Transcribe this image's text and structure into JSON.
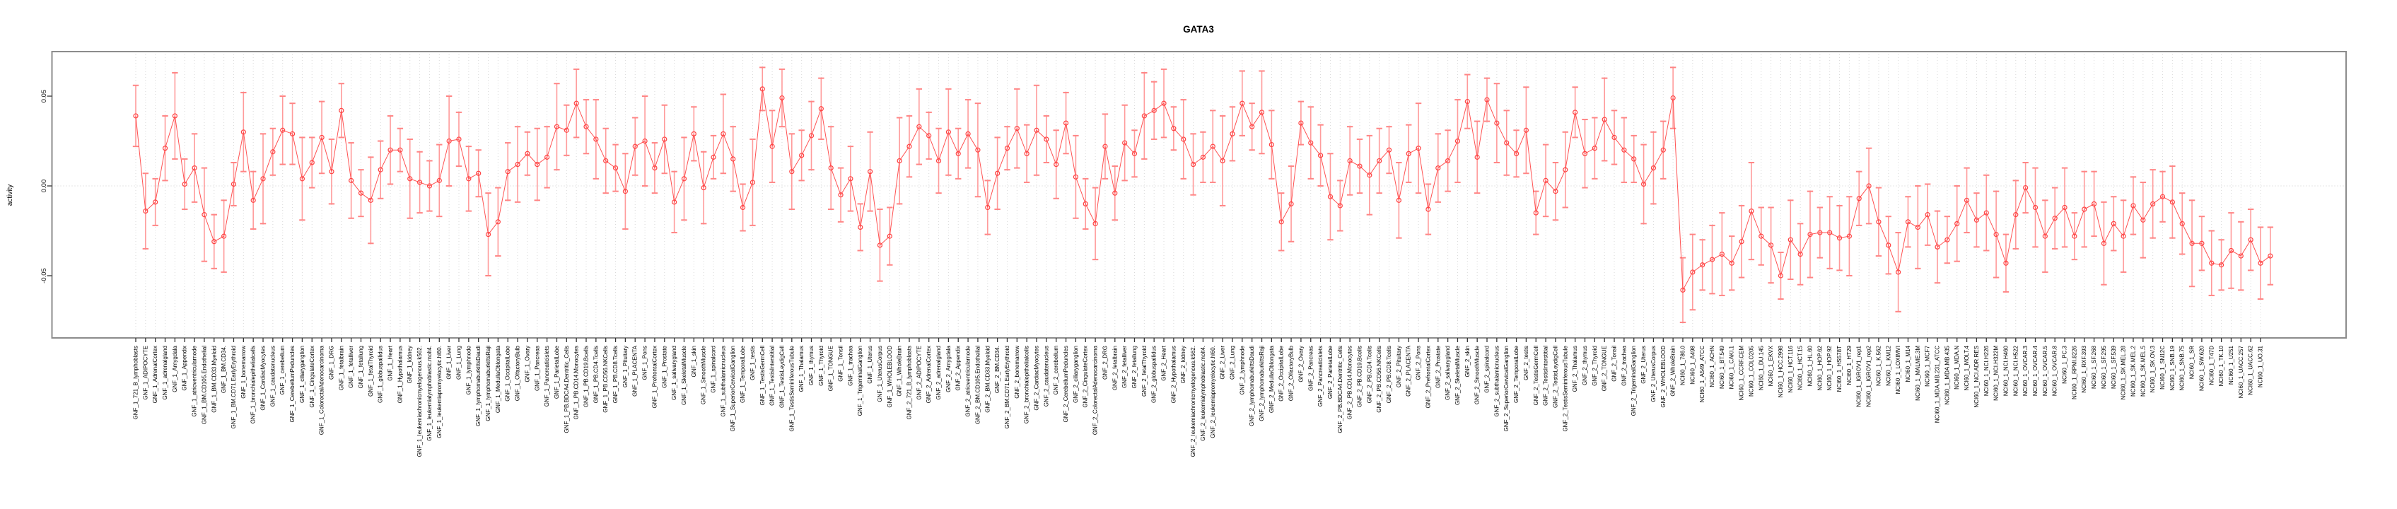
{
  "title": "GATA3",
  "colors": {
    "series_line": "#ff5252",
    "point_stroke": "#ff4242",
    "errorbar": "#ff9b9b",
    "errorbar_cap": "#ff8585",
    "grid": "#d9d9d9",
    "zero_line": "#cccccc",
    "plot_border": "#8c8c8c",
    "tick": "#333333",
    "text": "#000000"
  },
  "chart_data": {
    "type": "line",
    "title": "GATA3",
    "xlabel": "",
    "ylabel": "activity",
    "ylim": [
      -0.085,
      0.075
    ],
    "yticks": [
      0.05,
      0.0,
      -0.05
    ],
    "ytick_labels": [
      "0.05",
      "0.00",
      "-0.05"
    ],
    "legend": "none",
    "grid": "dotted vertical gridline at every category; dotted horizontal line at y=0",
    "marker": "open-circle with symmetric error bars (caps), points connected by line",
    "groups": [
      "GNF_1",
      "GNF_2",
      "NCI60_1"
    ],
    "categories": [
      "GNF_1_721_B_lymphoblasts",
      "GNF_1_ADIPOCYTE",
      "GNF_1_AdrenalCortex",
      "GNF_1_adrenalgland",
      "GNF_1_Amygdala",
      "GNF_1_Appendix",
      "GNF_1_atrioventricularnode",
      "GNF_1_BM.CD105.Endothelial",
      "GNF_1_BM.CD33.Myeloid",
      "GNF_1_BM.CD34.",
      "GNF_1_BM.CD71.EarlyErythroid",
      "GNF_1_bonemarrow",
      "GNF_1_bronchialepithelialcells",
      "GNF_1_CardiacMyocytes",
      "GNF_1_caudatenucleus",
      "GNF_1_cerebellum",
      "GNF_1_CerebellumPeduncles",
      "GNF_1_ciliaryganglion",
      "GNF_1_CingulateCortex",
      "GNF_1_ColorectalAdenocarcinoma",
      "GNF_1_DRG",
      "GNF_1_fetalbrain",
      "GNF_1_fetalliver",
      "GNF_1_fetallung",
      "GNF_1_fetalThyroid",
      "GNF_1_globuspallidus",
      "GNF_1_Heart",
      "GNF_1_Hypothalamus",
      "GNF_1_kidney",
      "GNF_1_leukemiachronicmyelogenous.k562.",
      "GNF_1_leukemialymphoblastic.molt4.",
      "GNF_1_leukemiapromyelocytic.hl60.",
      "GNF_1_Liver",
      "GNF_1_Lung",
      "GNF_1_lymphnode",
      "GNF_1_lymphomaburkittsDaudi",
      "GNF_1_lymphomaburkittsRaji",
      "GNF_1_MedullaOblongata",
      "GNF_1_OccipitalLobe",
      "GNF_1_OlfactoryBulb",
      "GNF_1_Ovary",
      "GNF_1_Pancreas",
      "GNF_1_Pancreaticislets",
      "GNF_1_ParietalLobe",
      "GNF_1_PB.BDCA4.Dentritic_Cells",
      "GNF_1_PB.CD14.Monocytes",
      "GNF_1_PB.CD19.Bcells",
      "GNF_1_PB.CD4.Tcells",
      "GNF_1_PB.CD56.NKCells",
      "GNF_1_PB.CD8.Tcells",
      "GNF_1_Pituitary",
      "GNF_1_PLACENTA",
      "GNF_1_Pons",
      "GNF_1_PrefrontalCortex",
      "GNF_1_Prostate",
      "GNF_1_salivarygland",
      "GNF_1_SkeletalMuscle",
      "GNF_1_skin",
      "GNF_1_SmoothMuscle",
      "GNF_1_spinalcord",
      "GNF_1_subthalamicnucleus",
      "GNF_1_SuperiorCervicalGanglion",
      "GNF_1_TemporalLobe",
      "GNF_1_testis",
      "GNF_1_TestisGermCell",
      "GNF_1_TestisInterstitial",
      "GNF_1_TestisLeydigCell",
      "GNF_1_TestisSeminiferousTubule",
      "GNF_1_Thalamus",
      "GNF_1_thymus",
      "GNF_1_Thyroid",
      "GNF_1_TONGUE",
      "GNF_1_Tonsil",
      "GNF_1_trachea",
      "GNF_1_TrigeminalGanglion",
      "GNF_1_Uterus",
      "GNF_1_UterusCorpus",
      "GNF_1_WHOLEBLOOD",
      "GNF_1_WholeBrain",
      "GNF_2_721_B_lymphoblasts",
      "GNF_2_ADIPOCYTE",
      "GNF_2_AdrenalCortex",
      "GNF_2_adrenalgland",
      "GNF_2_Amygdala",
      "GNF_2_Appendix",
      "GNF_2_atrioventricularnode",
      "GNF_2_BM.CD105.Endothelial",
      "GNF_2_BM.CD33.Myeloid",
      "GNF_2_BM.CD34.",
      "GNF_2_BM.CD71.EarlyErythroid",
      "GNF_2_bonemarrow",
      "GNF_2_bronchialepithelialcells",
      "GNF_2_CardiacMyocytes",
      "GNF_2_caudatenucleus",
      "GNF_2_cerebellum",
      "GNF_2_CerebellumPeduncles",
      "GNF_2_ciliaryganglion",
      "GNF_2_CingulateCortex",
      "GNF_2_ColorectalAdenocarcinoma",
      "GNF_2_DRG",
      "GNF_2_fetalbrain",
      "GNF_2_fetalliver",
      "GNF_2_fetallung",
      "GNF_2_fetalThyroid",
      "GNF_2_globuspallidus",
      "GNF_2_Heart",
      "GNF_2_Hypothalamus",
      "GNF_2_kidney",
      "GNF_2_leukemiachronicmyelogenous.k562.",
      "GNF_2_leukemialymphoblastic.molt4.",
      "GNF_2_leukemiapromyelocytic.hl60.",
      "GNF_2_Liver",
      "GNF_2_Lung",
      "GNF_2_lymphnode",
      "GNF_2_lymphomaburkittsDaudi",
      "GNF_2_lymphomaburkittsRaji",
      "GNF_2_MedullaOblongata",
      "GNF_2_OccipitalLobe",
      "GNF_2_OlfactoryBulb",
      "GNF_2_Ovary",
      "GNF_2_Pancreas",
      "GNF_2_Pancreaticislets",
      "GNF_2_ParietalLobe",
      "GNF_2_PB.BDCA4.Dentritic_Cells",
      "GNF_2_PB.CD14.Monocytes",
      "GNF_2_PB.CD19.Bcells",
      "GNF_2_PB.CD4.Tcells",
      "GNF_2_PB.CD56.NKCells",
      "GNF_2_PB.CD8.Tcells",
      "GNF_2_Pituitary",
      "GNF_2_PLACENTA",
      "GNF_2_Pons",
      "GNF_2_PrefrontalCortex",
      "GNF_2_Prostate",
      "GNF_2_salivarygland",
      "GNF_2_SkeletalMuscle",
      "GNF_2_skin",
      "GNF_2_SmoothMuscle",
      "GNF_2_spinalcord",
      "GNF_2_subthalamicnucleus",
      "GNF_2_SuperiorCervicalGanglion",
      "GNF_2_TemporalLobe",
      "GNF_2_testis",
      "GNF_2_TestisGermCell",
      "GNF_2_TestisInterstitial",
      "GNF_2_TestisLeydigCell",
      "GNF_2_TestisSeminiferousTubule",
      "GNF_2_Thalamus",
      "GNF_2_thymus",
      "GNF_2_Thyroid",
      "GNF_2_TONGUE",
      "GNF_2_Tonsil",
      "GNF_2_trachea",
      "GNF_2_TrigeminalGanglion",
      "GNF_2_Uterus",
      "GNF_2_UterusCorpus",
      "GNF_2_WHOLEBLOOD",
      "GNF_2_WholeBrain",
      "NCI60_1_786.0",
      "NCI60_1_A498",
      "NCI60_1_A549_ATCC",
      "NCI60_1_ACHN",
      "NCI60_1_BT.549",
      "NCI60_1_CAKI.1",
      "NCI60_1_CCRF.CEM",
      "NCI60_1_COLO205",
      "NCI60_1_DU.145",
      "NCI60_1_EKVX",
      "NCI60_1_HCC.2998",
      "NCI60_1_HCT.116",
      "NCI60_1_HCT.15",
      "NCI60_1_HL.60",
      "NCI60_1_HOP.62",
      "NCI60_1_HOP.92",
      "NCI60_1_HS578T",
      "NCI60_1_HT29",
      "NCI60_1_IGROV1_rep1",
      "NCI60_1_IGROV1_rep2",
      "NCI60_1_K.562",
      "NCI60_1_KM12",
      "NCI60_1_LOXIMVI",
      "NCI60_1_M14",
      "NCI60_1_MALME.3M",
      "NCI60_1_MCF7",
      "NCI60_1_MDA.MB.231_ATCC",
      "NCI60_1_MDA.MB.435",
      "NCI60_1_MDA.N",
      "NCI60_1_MOLT.4",
      "NCI60_1_NCI.ADR.RES",
      "NCI60_1_NCI.H226",
      "NCI60_1_NCI.H322M",
      "NCI60_1_NCI.H460",
      "NCI60_1_NCI.H522",
      "NCI60_1_OVCAR.3",
      "NCI60_1_OVCAR.4",
      "NCI60_1_OVCAR.5",
      "NCI60_1_OVCAR.8",
      "NCI60_1_PC.3",
      "NCI60_1_RPMI.8226",
      "NCI60_1_RXF.393",
      "NCI60_1_SF.268",
      "NCI60_1_SF.295",
      "NCI60_1_SF.539",
      "NCI60_1_SK.MEL.28",
      "NCI60_1_SK.MEL.2",
      "NCI60_1_SK.MEL.5",
      "NCI60_1_SK.OV.3",
      "NCI60_1_SN12C",
      "NCI60_1_SNB.19",
      "NCI60_1_SNB.75",
      "NCI60_1_SR",
      "NCI60_1_SW.620",
      "NCI60_1_T47D",
      "NCI60_1_TK.10",
      "NCI60_1_U251",
      "NCI60_1_UACC.257",
      "NCI60_1_UACC.62",
      "NCI60_1_UO.31"
    ],
    "values": [
      0.039,
      -0.014,
      -0.009,
      0.021,
      0.039,
      0.001,
      0.01,
      -0.016,
      -0.031,
      -0.028,
      0.001,
      0.03,
      -0.008,
      0.004,
      0.019,
      0.031,
      0.029,
      0.004,
      0.013,
      0.027,
      0.008,
      0.042,
      0.003,
      -0.004,
      -0.008,
      0.009,
      0.02,
      0.02,
      0.004,
      0.002,
      0.0,
      0.003,
      0.025,
      0.026,
      0.004,
      0.007,
      -0.027,
      -0.02,
      0.008,
      0.012,
      0.018,
      0.012,
      0.016,
      0.033,
      0.031,
      0.046,
      0.033,
      0.026,
      0.014,
      0.01,
      -0.003,
      0.022,
      0.025,
      0.01,
      0.026,
      -0.009,
      0.004,
      0.029,
      -0.001,
      0.016,
      0.029,
      0.015,
      -0.012,
      0.002,
      0.054,
      0.022,
      0.049,
      0.008,
      0.017,
      0.028,
      0.043,
      0.01,
      -0.005,
      0.004,
      -0.023,
      0.008,
      -0.033,
      -0.028,
      0.014,
      0.022,
      0.033,
      0.028,
      0.014,
      0.03,
      0.018,
      0.029,
      0.02,
      -0.012,
      0.007,
      0.021,
      0.032,
      0.018,
      0.031,
      0.026,
      0.012,
      0.035,
      0.005,
      -0.01,
      -0.021,
      0.022,
      -0.004,
      0.024,
      0.018,
      0.039,
      0.042,
      0.046,
      0.032,
      0.026,
      0.012,
      0.016,
      0.022,
      0.014,
      0.029,
      0.046,
      0.033,
      0.041,
      0.023,
      -0.02,
      -0.01,
      0.035,
      0.024,
      0.017,
      -0.006,
      -0.011,
      0.014,
      0.011,
      0.006,
      0.014,
      0.02,
      -0.008,
      0.018,
      0.021,
      -0.013,
      0.01,
      0.014,
      0.025,
      0.047,
      0.016,
      0.048,
      0.035,
      0.024,
      0.018,
      0.031,
      -0.015,
      0.003,
      -0.003,
      0.009,
      0.041,
      0.018,
      0.021,
      0.037,
      0.027,
      0.02,
      0.015,
      0.001,
      0.01,
      0.02,
      0.049,
      -0.058,
      -0.048,
      -0.044,
      -0.041,
      -0.038,
      -0.043,
      -0.031,
      -0.014,
      -0.028,
      -0.033,
      -0.05,
      -0.03,
      -0.038,
      -0.027,
      -0.026,
      -0.026,
      -0.029,
      -0.028,
      -0.007,
      0.0,
      -0.02,
      -0.033,
      -0.048,
      -0.02,
      -0.023,
      -0.016,
      -0.034,
      -0.03,
      -0.021,
      -0.008,
      -0.019,
      -0.015,
      -0.027,
      -0.043,
      -0.016,
      -0.001,
      -0.012,
      -0.028,
      -0.018,
      -0.012,
      -0.028,
      -0.013,
      -0.01,
      -0.032,
      -0.021,
      -0.028,
      -0.011,
      -0.019,
      -0.01,
      -0.006,
      -0.009,
      -0.021,
      -0.032,
      -0.032,
      -0.043,
      -0.044,
      -0.036,
      -0.039,
      -0.03,
      -0.043,
      -0.039
    ],
    "errors": [
      0.017,
      0.021,
      0.013,
      0.018,
      0.024,
      0.014,
      0.019,
      0.026,
      0.015,
      0.02,
      0.012,
      0.022,
      0.016,
      0.025,
      0.013,
      0.019,
      0.017,
      0.023,
      0.014,
      0.02,
      0.018,
      0.015,
      0.021,
      0.013,
      0.024,
      0.016,
      0.019,
      0.012,
      0.022,
      0.017,
      0.014,
      0.02,
      0.025,
      0.015,
      0.018,
      0.013,
      0.023,
      0.019,
      0.016,
      0.021,
      0.012,
      0.02,
      0.017,
      0.024,
      0.014,
      0.019,
      0.015,
      0.022,
      0.018,
      0.013,
      0.021,
      0.016,
      0.025,
      0.014,
      0.019,
      0.017,
      0.023,
      0.015,
      0.02,
      0.012,
      0.022,
      0.018,
      0.013,
      0.024,
      0.012,
      0.02,
      0.016,
      0.021,
      0.014,
      0.019,
      0.017,
      0.023,
      0.015,
      0.018,
      0.013,
      0.022,
      0.02,
      0.016,
      0.024,
      0.017,
      0.021,
      0.013,
      0.018,
      0.024,
      0.014,
      0.019,
      0.026,
      0.015,
      0.02,
      0.012,
      0.022,
      0.016,
      0.025,
      0.013,
      0.019,
      0.017,
      0.023,
      0.014,
      0.02,
      0.018,
      0.015,
      0.021,
      0.013,
      0.024,
      0.016,
      0.019,
      0.012,
      0.022,
      0.017,
      0.014,
      0.02,
      0.025,
      0.015,
      0.018,
      0.013,
      0.023,
      0.019,
      0.016,
      0.021,
      0.012,
      0.02,
      0.017,
      0.024,
      0.014,
      0.019,
      0.015,
      0.022,
      0.018,
      0.013,
      0.021,
      0.016,
      0.025,
      0.014,
      0.019,
      0.017,
      0.023,
      0.015,
      0.02,
      0.012,
      0.022,
      0.018,
      0.013,
      0.024,
      0.012,
      0.02,
      0.016,
      0.021,
      0.014,
      0.019,
      0.017,
      0.023,
      0.015,
      0.018,
      0.013,
      0.022,
      0.02,
      0.016,
      0.017,
      0.018,
      0.021,
      0.014,
      0.019,
      0.023,
      0.015,
      0.02,
      0.027,
      0.016,
      0.021,
      0.013,
      0.022,
      0.017,
      0.024,
      0.014,
      0.02,
      0.018,
      0.022,
      0.015,
      0.021,
      0.019,
      0.016,
      0.022,
      0.014,
      0.023,
      0.017,
      0.02,
      0.013,
      0.021,
      0.018,
      0.015,
      0.021,
      0.024,
      0.016,
      0.019,
      0.014,
      0.022,
      0.02,
      0.017,
      0.022,
      0.013,
      0.021,
      0.018,
      0.023,
      0.015,
      0.02,
      0.016,
      0.021,
      0.019,
      0.014,
      0.02,
      0.017,
      0.024,
      0.015,
      0.018,
      0.014,
      0.021,
      0.019,
      0.017,
      0.02,
      0.016
    ]
  }
}
